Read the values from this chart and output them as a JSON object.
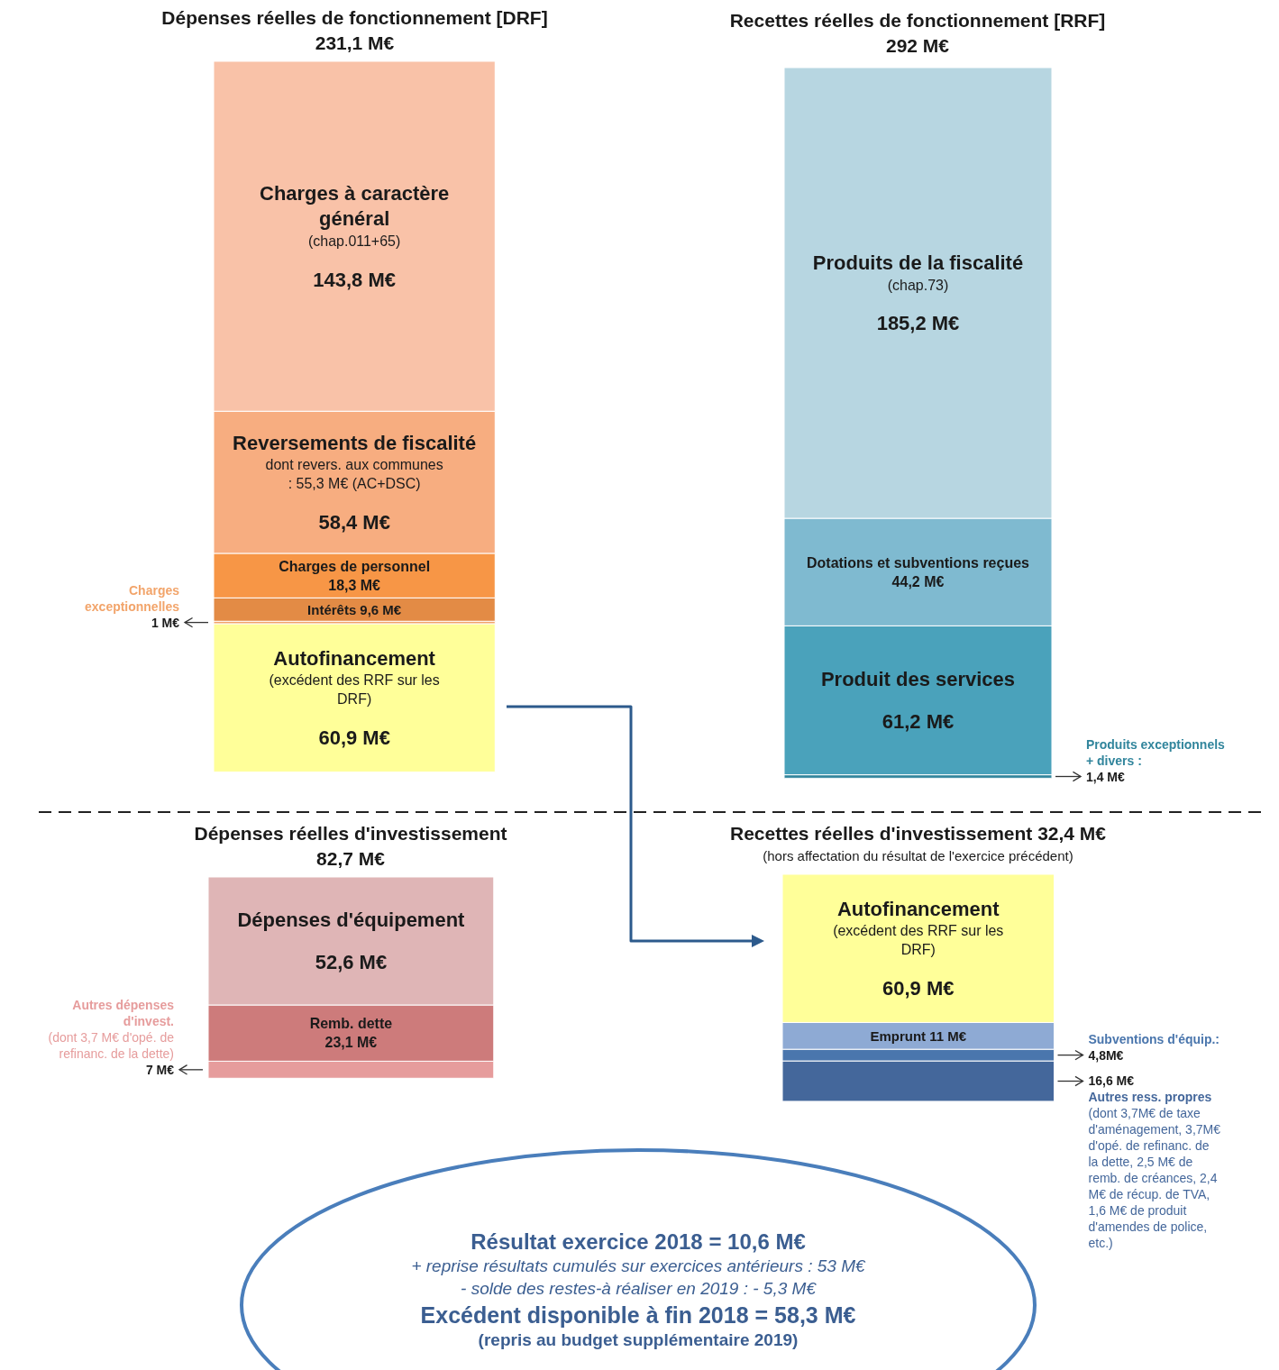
{
  "chart_data": [
    {
      "type": "bar",
      "stacked": true,
      "title": "Dépenses réelles de fonctionnement [DRF]",
      "subtitle": "231,1 M€",
      "categories": [
        null
      ],
      "annotations": [
        "dont revers. aux communes : 55,3 M€ (AC+DSC)"
      ],
      "series": [
        {
          "name": "Autofinancement (excédent des RRF sur les DRF)",
          "color": "#ffff99",
          "values": [
            60.9
          ],
          "value_labels": [
            "60,9 M€"
          ]
        },
        {
          "name": "Charges exceptionnelles",
          "color": "#f2a46a",
          "values": [
            1
          ],
          "value_labels": [
            "1 M€"
          ]
        },
        {
          "name": "Intérêts",
          "color": "#e38b45",
          "values": [
            9.6
          ],
          "value_labels": [
            "9,6 M€"
          ]
        },
        {
          "name": "Charges de personnel",
          "color": "#f79646",
          "values": [
            18.3
          ],
          "value_labels": [
            "18,3 M€"
          ]
        },
        {
          "name": "Reversements de fiscalité",
          "color": "#f7ad80",
          "values": [
            58.4
          ],
          "value_labels": [
            "58,4 M€"
          ]
        },
        {
          "name": "Charges à caractère général (chap.011+65)",
          "color": "#f9c2a8",
          "values": [
            143.8
          ],
          "value_labels": [
            "143,8 M€"
          ]
        }
      ]
    },
    {
      "type": "bar",
      "stacked": true,
      "title": "Recettes réelles de fonctionnement [RRF]",
      "subtitle": "292 M€",
      "categories": [
        null
      ],
      "series": [
        {
          "name": "Produits exceptionnels + divers :",
          "color": "#31859c",
          "values": [
            1.4
          ],
          "value_labels": [
            "1,4 M€"
          ]
        },
        {
          "name": "Produit des services",
          "color": "#4aa2bb",
          "values": [
            61.2
          ],
          "value_labels": [
            "61,2 M€"
          ]
        },
        {
          "name": "Dotations et subventions reçues",
          "color": "#7fbad0",
          "values": [
            44.2
          ],
          "value_labels": [
            "44,2 M€"
          ]
        },
        {
          "name": "Produits de la fiscalité (chap.73)",
          "color": "#b7d6e1",
          "values": [
            185.2
          ],
          "value_labels": [
            "185,2 M€"
          ]
        }
      ]
    },
    {
      "type": "bar",
      "stacked": true,
      "title": "Dépenses réelles d'investissement",
      "subtitle": "82,7 M€",
      "categories": [
        null
      ],
      "series": [
        {
          "name": "Autres dépenses d'invest. (dont 3,7 M€ d'opé. de refinanc. de la dette)",
          "color": "#e69c9c",
          "values": [
            7
          ],
          "value_labels": [
            "7 M€"
          ]
        },
        {
          "name": "Remb. dette",
          "color": "#cd7b7b",
          "values": [
            23.1
          ],
          "value_labels": [
            "23,1 M€"
          ]
        },
        {
          "name": "Dépenses d'équipement",
          "color": "#dfb5b6",
          "values": [
            52.6
          ],
          "value_labels": [
            "52,6 M€"
          ]
        }
      ]
    },
    {
      "type": "bar",
      "stacked": true,
      "title": "Recettes réelles d'investissement 32,4 M€",
      "subtitle": "(hors affectation du résultat de l'exercice précédent)",
      "categories": [
        null
      ],
      "series": [
        {
          "name": "Autres ress. propres (dont 3,7M€ de taxe d'aménagement, 3,7M€ d'opé. de refinanc. de la dette, 2,5 M€ de remb. de créances, 2,4 M€ de récup. de TVA, 1,6 M€ de produit d'amendes de police, etc.)",
          "color": "#44679b",
          "values": [
            16.6
          ],
          "value_labels": [
            "16,6 M€"
          ]
        },
        {
          "name": "Subventions d'équip.:",
          "color": "#4a76ad",
          "values": [
            4.8
          ],
          "value_labels": [
            "4,8M€"
          ]
        },
        {
          "name": "Emprunt",
          "color": "#8eaad4",
          "values": [
            11
          ],
          "value_labels": [
            "11 M€"
          ]
        },
        {
          "name": "Autofinancement (excédent des RRF sur les DRF)",
          "color": "#ffff99",
          "values": [
            60.9
          ],
          "value_labels": [
            "60,9 M€"
          ]
        }
      ]
    },
    {
      "type": "other",
      "annotations": [
        "Résultat exercice 2018 = 10,6 M€",
        "+ reprise résultats cumulés sur exercices antérieurs : 53 M€",
        "- solde des restes-à réaliser en 2019 : - 5,3 M€",
        "Excédent disponible à fin 2018 = 58,3 M€",
        "(repris au budget supplémentaire 2019)"
      ]
    }
  ]
}
